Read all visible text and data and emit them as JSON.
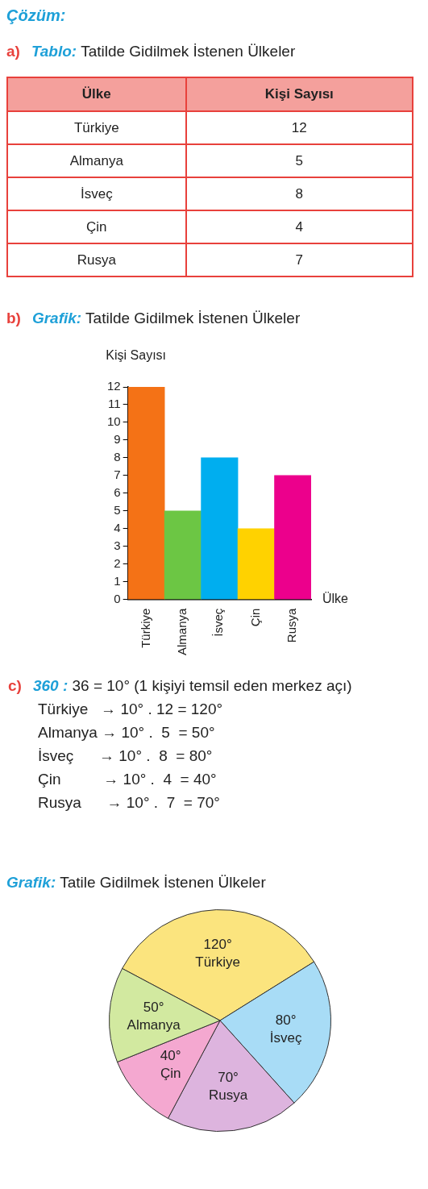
{
  "chart_data": [
    {
      "type": "other",
      "title": "a) Tablo: Tatilde Gidilmek İstenen Ülkeler",
      "annotations": [
        "Çözüm:"
      ],
      "xlabel": "Ülke",
      "ylabel": "Kişi Sayısı",
      "categories": [
        "Türkiye",
        "Almanya",
        "İsveç",
        "Çin",
        "Rusya"
      ],
      "value_labels": [
        "12",
        "5",
        "8",
        "4",
        "7"
      ],
      "data_labels": true
    },
    {
      "type": "bar",
      "title": "b) Grafik: Tatilde Gidilmek İstenen Ülkeler",
      "categories": [
        "Türkiye",
        "Almanya",
        "İsveç",
        "Çin",
        "Rusya"
      ],
      "values": [
        12,
        5,
        8,
        4,
        7
      ],
      "colors": [
        "#f47216",
        "#6cc644",
        "#00aeef",
        "#ffd200",
        "#ec008c"
      ],
      "xlabel": "Ülke",
      "ylabel": "Kişi Sayısı",
      "ylim": [
        0,
        12
      ],
      "yticks": [
        0,
        1,
        2,
        3,
        4,
        5,
        6,
        7,
        8,
        9,
        10,
        11,
        12
      ]
    },
    {
      "type": "pie",
      "title": "Grafik: Tatile Gidilmek İstenen Ülkeler",
      "annotations": [
        "c) 360 : 36 = 10° (1 kişiyi temsil eden merkez açı)",
        "Türkiye   → 10° . 12 = 120°",
        "Almanya → 10° .  5  = 50°",
        "İsveç      → 10° .  8  = 80°",
        "Çin          → 10° .  4  = 40°",
        "Rusya      → 10° .  7  = 70°"
      ],
      "categories": [
        "Türkiye",
        "İsveç",
        "Rusya",
        "Çin",
        "Almanya"
      ],
      "values": [
        120,
        80,
        70,
        40,
        50
      ],
      "colors": [
        "#fbe47e",
        "#a8dcf6",
        "#ddb4de",
        "#f4a8d0",
        "#d2e9a0"
      ],
      "value_labels": [
        "120°",
        "80°",
        "70°",
        "40°",
        "50°"
      ]
    }
  ]
}
